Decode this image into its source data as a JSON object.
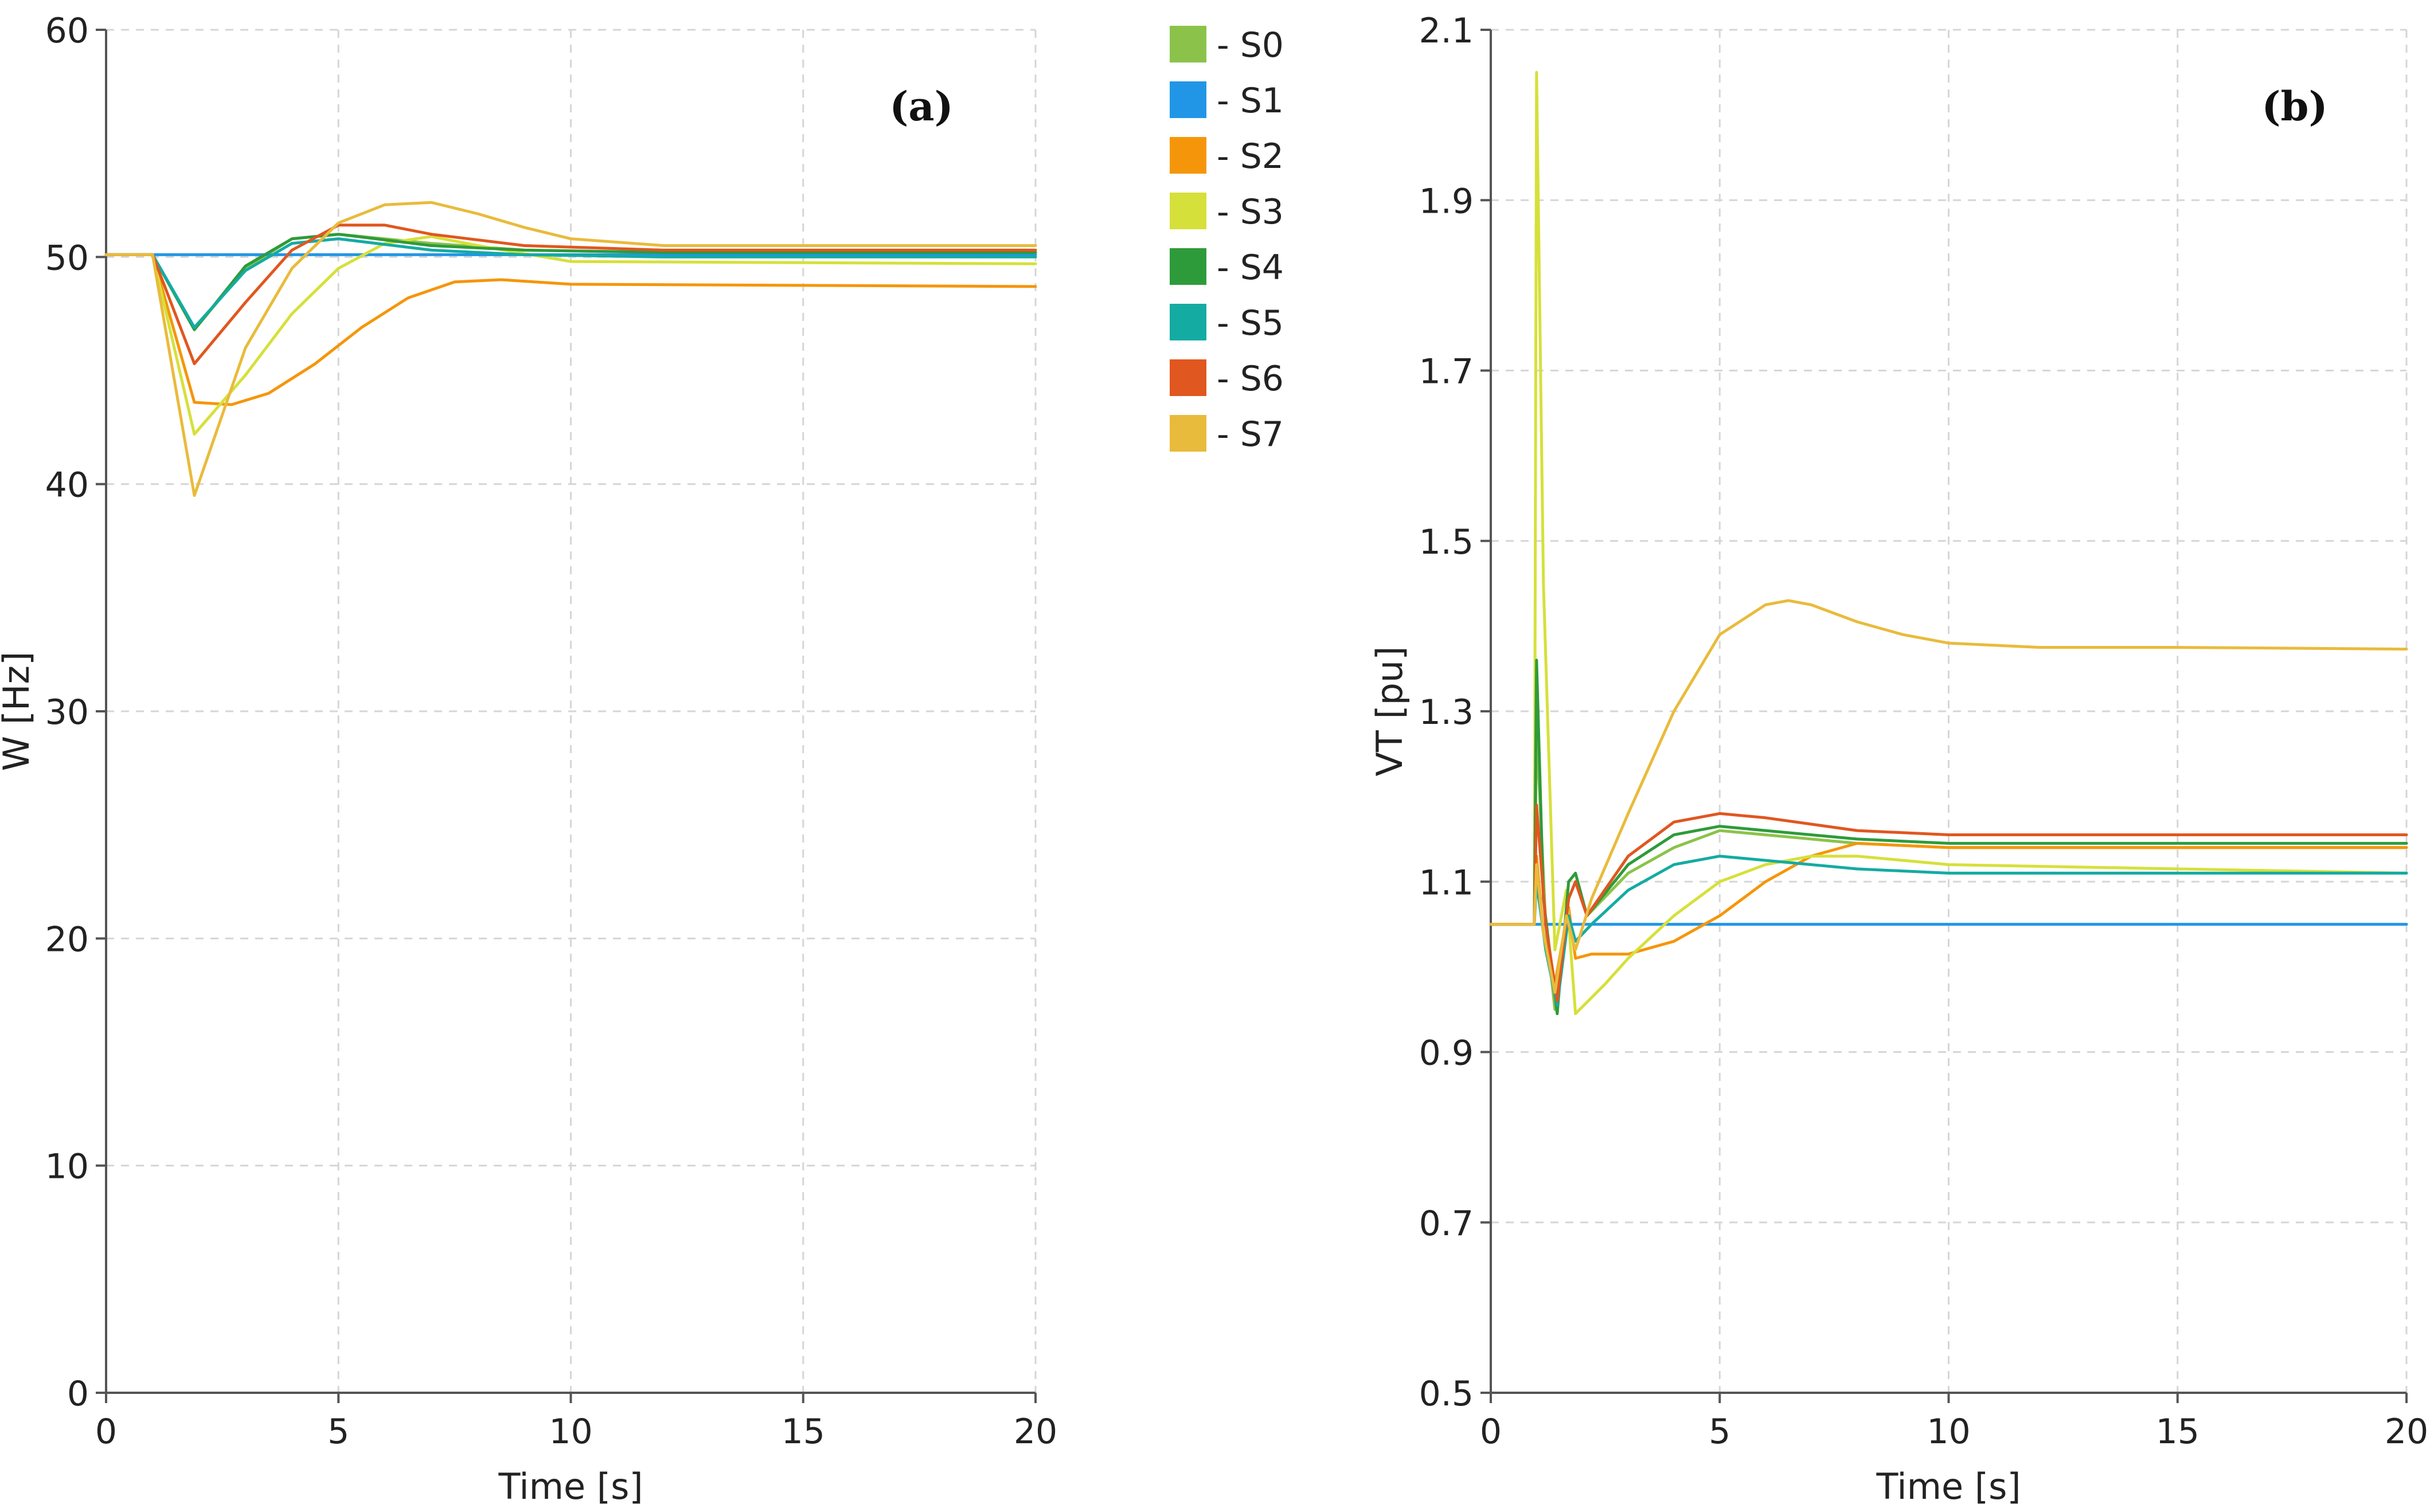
{
  "legend": {
    "entries": [
      {
        "label": "- S0",
        "color": "#8bc34a"
      },
      {
        "label": "- S1",
        "color": "#2196e6"
      },
      {
        "label": "- S2",
        "color": "#f5960a"
      },
      {
        "label": "- S3",
        "color": "#d6e03a"
      },
      {
        "label": "- S4",
        "color": "#2e9b3a"
      },
      {
        "label": "- S5",
        "color": "#14aba3"
      },
      {
        "label": "- S6",
        "color": "#e0571f"
      },
      {
        "label": "- S7",
        "color": "#e9bb3c"
      }
    ]
  },
  "chart_data": [
    {
      "type": "line",
      "panel_label": "(a)",
      "title": "",
      "xlabel": "Time [s]",
      "ylabel": "W [Hz]",
      "xlim": [
        0,
        20
      ],
      "ylim": [
        0,
        60
      ],
      "xticks": [
        0,
        5,
        10,
        15,
        20
      ],
      "yticks": [
        0,
        10,
        20,
        30,
        40,
        50,
        60
      ],
      "grid": true,
      "series": [
        {
          "name": "S0",
          "color": "#8bc34a",
          "x": [
            0,
            1,
            1.9,
            3,
            4,
            5,
            7,
            9,
            12,
            20
          ],
          "y": [
            50.1,
            50.1,
            46.8,
            49.5,
            50.8,
            51.0,
            50.6,
            50.3,
            50.2,
            50.2
          ]
        },
        {
          "name": "S1",
          "color": "#2196e6",
          "x": [
            0,
            20
          ],
          "y": [
            50.1,
            50.1
          ]
        },
        {
          "name": "S2",
          "color": "#f5960a",
          "x": [
            0,
            1,
            1.9,
            2.7,
            3.5,
            4.5,
            5.5,
            6.5,
            7.5,
            8.5,
            10,
            20
          ],
          "y": [
            50.1,
            50.1,
            43.6,
            43.5,
            44.0,
            45.3,
            46.9,
            48.2,
            48.9,
            49.0,
            48.8,
            48.7
          ]
        },
        {
          "name": "S3",
          "color": "#d6e03a",
          "x": [
            0,
            1,
            1.9,
            3,
            4,
            5,
            6,
            7,
            8,
            10,
            20
          ],
          "y": [
            50.1,
            50.1,
            42.2,
            44.8,
            47.5,
            49.5,
            50.6,
            50.9,
            50.5,
            49.8,
            49.7
          ]
        },
        {
          "name": "S4",
          "color": "#2e9b3a",
          "x": [
            0,
            1,
            1.9,
            3,
            4,
            5,
            7,
            9,
            12,
            20
          ],
          "y": [
            50.1,
            50.1,
            46.8,
            49.6,
            50.8,
            51.0,
            50.5,
            50.3,
            50.2,
            50.2
          ]
        },
        {
          "name": "S5",
          "color": "#14aba3",
          "x": [
            0,
            1,
            1.9,
            3,
            4,
            5,
            7,
            9,
            12,
            20
          ],
          "y": [
            50.1,
            50.1,
            46.9,
            49.4,
            50.6,
            50.8,
            50.3,
            50.1,
            50.0,
            50.0
          ]
        },
        {
          "name": "S6",
          "color": "#e0571f",
          "x": [
            0,
            1,
            1.9,
            3,
            4,
            5,
            6,
            7,
            9,
            12,
            20
          ],
          "y": [
            50.1,
            50.1,
            45.3,
            48.0,
            50.3,
            51.4,
            51.4,
            51.0,
            50.5,
            50.3,
            50.3
          ]
        },
        {
          "name": "S7",
          "color": "#e9bb3c",
          "x": [
            0,
            1,
            1.9,
            3,
            4,
            5,
            6,
            7,
            8,
            9,
            10,
            12,
            20
          ],
          "y": [
            50.1,
            50.1,
            39.5,
            46.0,
            49.5,
            51.5,
            52.3,
            52.4,
            51.9,
            51.3,
            50.8,
            50.5,
            50.5
          ]
        }
      ]
    },
    {
      "type": "line",
      "panel_label": "(b)",
      "title": "",
      "xlabel": "Time [s]",
      "ylabel": "VT [pu]",
      "xlim": [
        0,
        20
      ],
      "ylim": [
        0.5,
        2.1
      ],
      "xticks": [
        0,
        5,
        10,
        15,
        20
      ],
      "yticks": [
        0.5,
        0.7,
        0.9,
        1.1,
        1.3,
        1.5,
        1.7,
        1.9,
        2.1
      ],
      "grid": true,
      "series": [
        {
          "name": "S0",
          "color": "#8bc34a",
          "x": [
            0,
            0.95,
            1.0,
            1.2,
            1.4,
            1.7,
            1.85,
            2.1,
            3,
            4,
            5,
            6,
            8,
            10,
            20
          ],
          "y": [
            1.05,
            1.05,
            1.28,
            1.05,
            0.95,
            1.08,
            1.1,
            1.06,
            1.11,
            1.14,
            1.16,
            1.155,
            1.145,
            1.14,
            1.14
          ]
        },
        {
          "name": "S1",
          "color": "#2196e6",
          "x": [
            0,
            20
          ],
          "y": [
            1.05,
            1.05
          ]
        },
        {
          "name": "S2",
          "color": "#f5960a",
          "x": [
            0,
            0.95,
            1.0,
            1.15,
            1.4,
            1.7,
            1.85,
            2.2,
            3,
            4,
            5,
            6,
            7,
            8,
            10,
            20
          ],
          "y": [
            1.05,
            1.05,
            1.13,
            1.04,
            0.98,
            1.07,
            1.01,
            1.015,
            1.015,
            1.03,
            1.06,
            1.1,
            1.13,
            1.145,
            1.14,
            1.14
          ]
        },
        {
          "name": "S3",
          "color": "#d6e03a",
          "x": [
            0,
            0.95,
            1.0,
            1.15,
            1.4,
            1.65,
            1.85,
            2.5,
            3,
            4,
            5,
            6,
            7,
            8,
            10,
            20
          ],
          "y": [
            1.05,
            1.05,
            2.05,
            1.45,
            1.02,
            1.09,
            0.945,
            0.98,
            1.01,
            1.06,
            1.1,
            1.12,
            1.13,
            1.13,
            1.12,
            1.11
          ]
        },
        {
          "name": "S4",
          "color": "#2e9b3a",
          "x": [
            0,
            0.95,
            1.0,
            1.15,
            1.45,
            1.7,
            1.85,
            2.1,
            3,
            4,
            5,
            6,
            8,
            10,
            20
          ],
          "y": [
            1.05,
            1.05,
            1.36,
            1.08,
            0.945,
            1.1,
            1.11,
            1.06,
            1.12,
            1.155,
            1.165,
            1.16,
            1.15,
            1.145,
            1.145
          ]
        },
        {
          "name": "S5",
          "color": "#14aba3",
          "x": [
            0,
            0.95,
            1.0,
            1.2,
            1.45,
            1.7,
            1.85,
            2.2,
            3,
            4,
            5,
            6,
            8,
            10,
            20
          ],
          "y": [
            1.05,
            1.05,
            1.1,
            1.02,
            0.955,
            1.06,
            1.03,
            1.05,
            1.09,
            1.12,
            1.13,
            1.125,
            1.115,
            1.11,
            1.11
          ]
        },
        {
          "name": "S6",
          "color": "#e0571f",
          "x": [
            0,
            0.95,
            1.0,
            1.2,
            1.45,
            1.7,
            1.85,
            2.1,
            3,
            4,
            5,
            6,
            8,
            10,
            20
          ],
          "y": [
            1.05,
            1.05,
            1.19,
            1.05,
            0.96,
            1.08,
            1.1,
            1.06,
            1.13,
            1.17,
            1.18,
            1.175,
            1.16,
            1.155,
            1.155
          ]
        },
        {
          "name": "S7",
          "color": "#e9bb3c",
          "x": [
            0,
            0.95,
            1.0,
            1.15,
            1.4,
            1.65,
            1.85,
            2.2,
            3,
            4,
            5,
            6,
            6.5,
            7,
            8,
            9,
            10,
            12,
            15,
            20
          ],
          "y": [
            1.05,
            1.05,
            1.12,
            1.04,
            0.97,
            1.06,
            1.02,
            1.08,
            1.18,
            1.3,
            1.39,
            1.425,
            1.43,
            1.425,
            1.405,
            1.39,
            1.38,
            1.375,
            1.375,
            1.373
          ]
        }
      ]
    }
  ]
}
